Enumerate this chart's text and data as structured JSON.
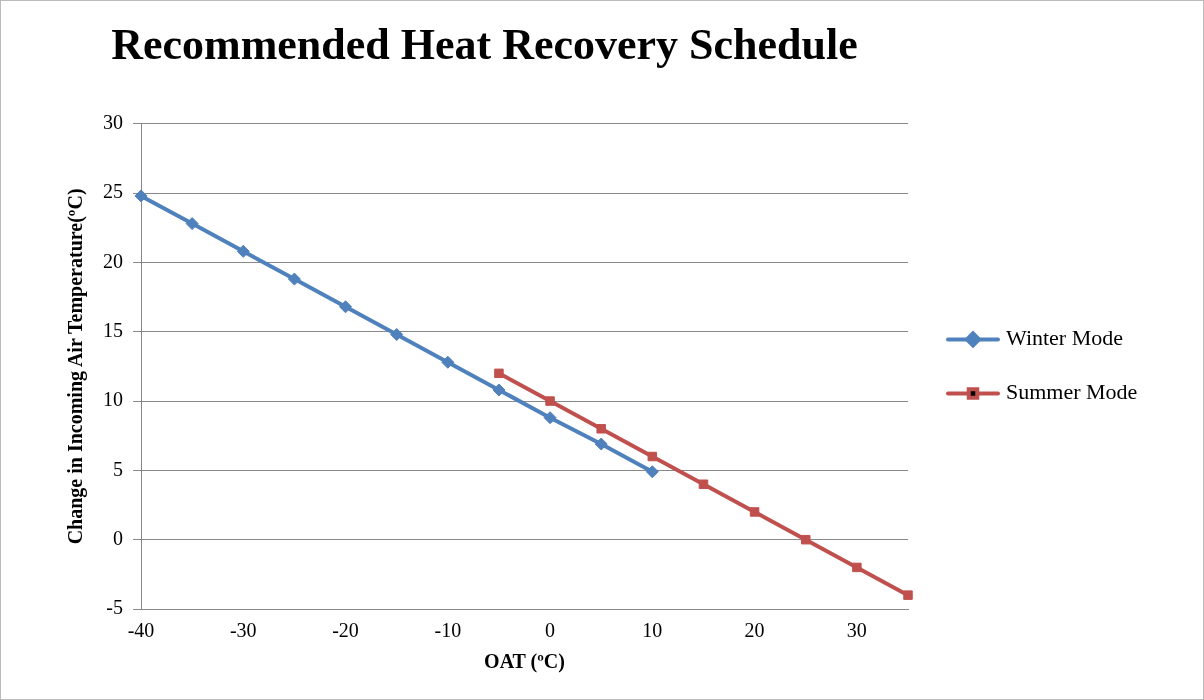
{
  "chart_data": {
    "type": "line",
    "title": "Recommended Heat Recovery Schedule",
    "xlabel": "OAT (ºC)",
    "ylabel": "Change in Incoming Air Temperature(ºC)",
    "series": [
      {
        "name": "Winter Mode",
        "color": "#4f81bd",
        "marker": "diamond",
        "x": [
          -40,
          -35,
          -30,
          -25,
          -20,
          -15,
          -10,
          -5,
          0,
          5,
          10
        ],
        "values": [
          24.8,
          22.8,
          20.8,
          18.8,
          16.8,
          14.8,
          12.8,
          10.8,
          8.8,
          6.9,
          4.9
        ]
      },
      {
        "name": "Summer Mode",
        "color": "#c0504d",
        "marker": "square",
        "x": [
          -5,
          0,
          5,
          10,
          15,
          20,
          25,
          30,
          35
        ],
        "values": [
          12,
          10,
          8,
          6,
          4,
          2,
          0,
          -2,
          -4
        ]
      }
    ],
    "xlim": [
      -40,
      35
    ],
    "xticks": [
      -40,
      -30,
      -20,
      -10,
      0,
      10,
      20,
      30
    ],
    "ylim": [
      -5,
      30
    ],
    "yticks": [
      -5,
      0,
      5,
      10,
      15,
      20,
      25,
      30
    ],
    "grid": "y",
    "legend": "right"
  }
}
